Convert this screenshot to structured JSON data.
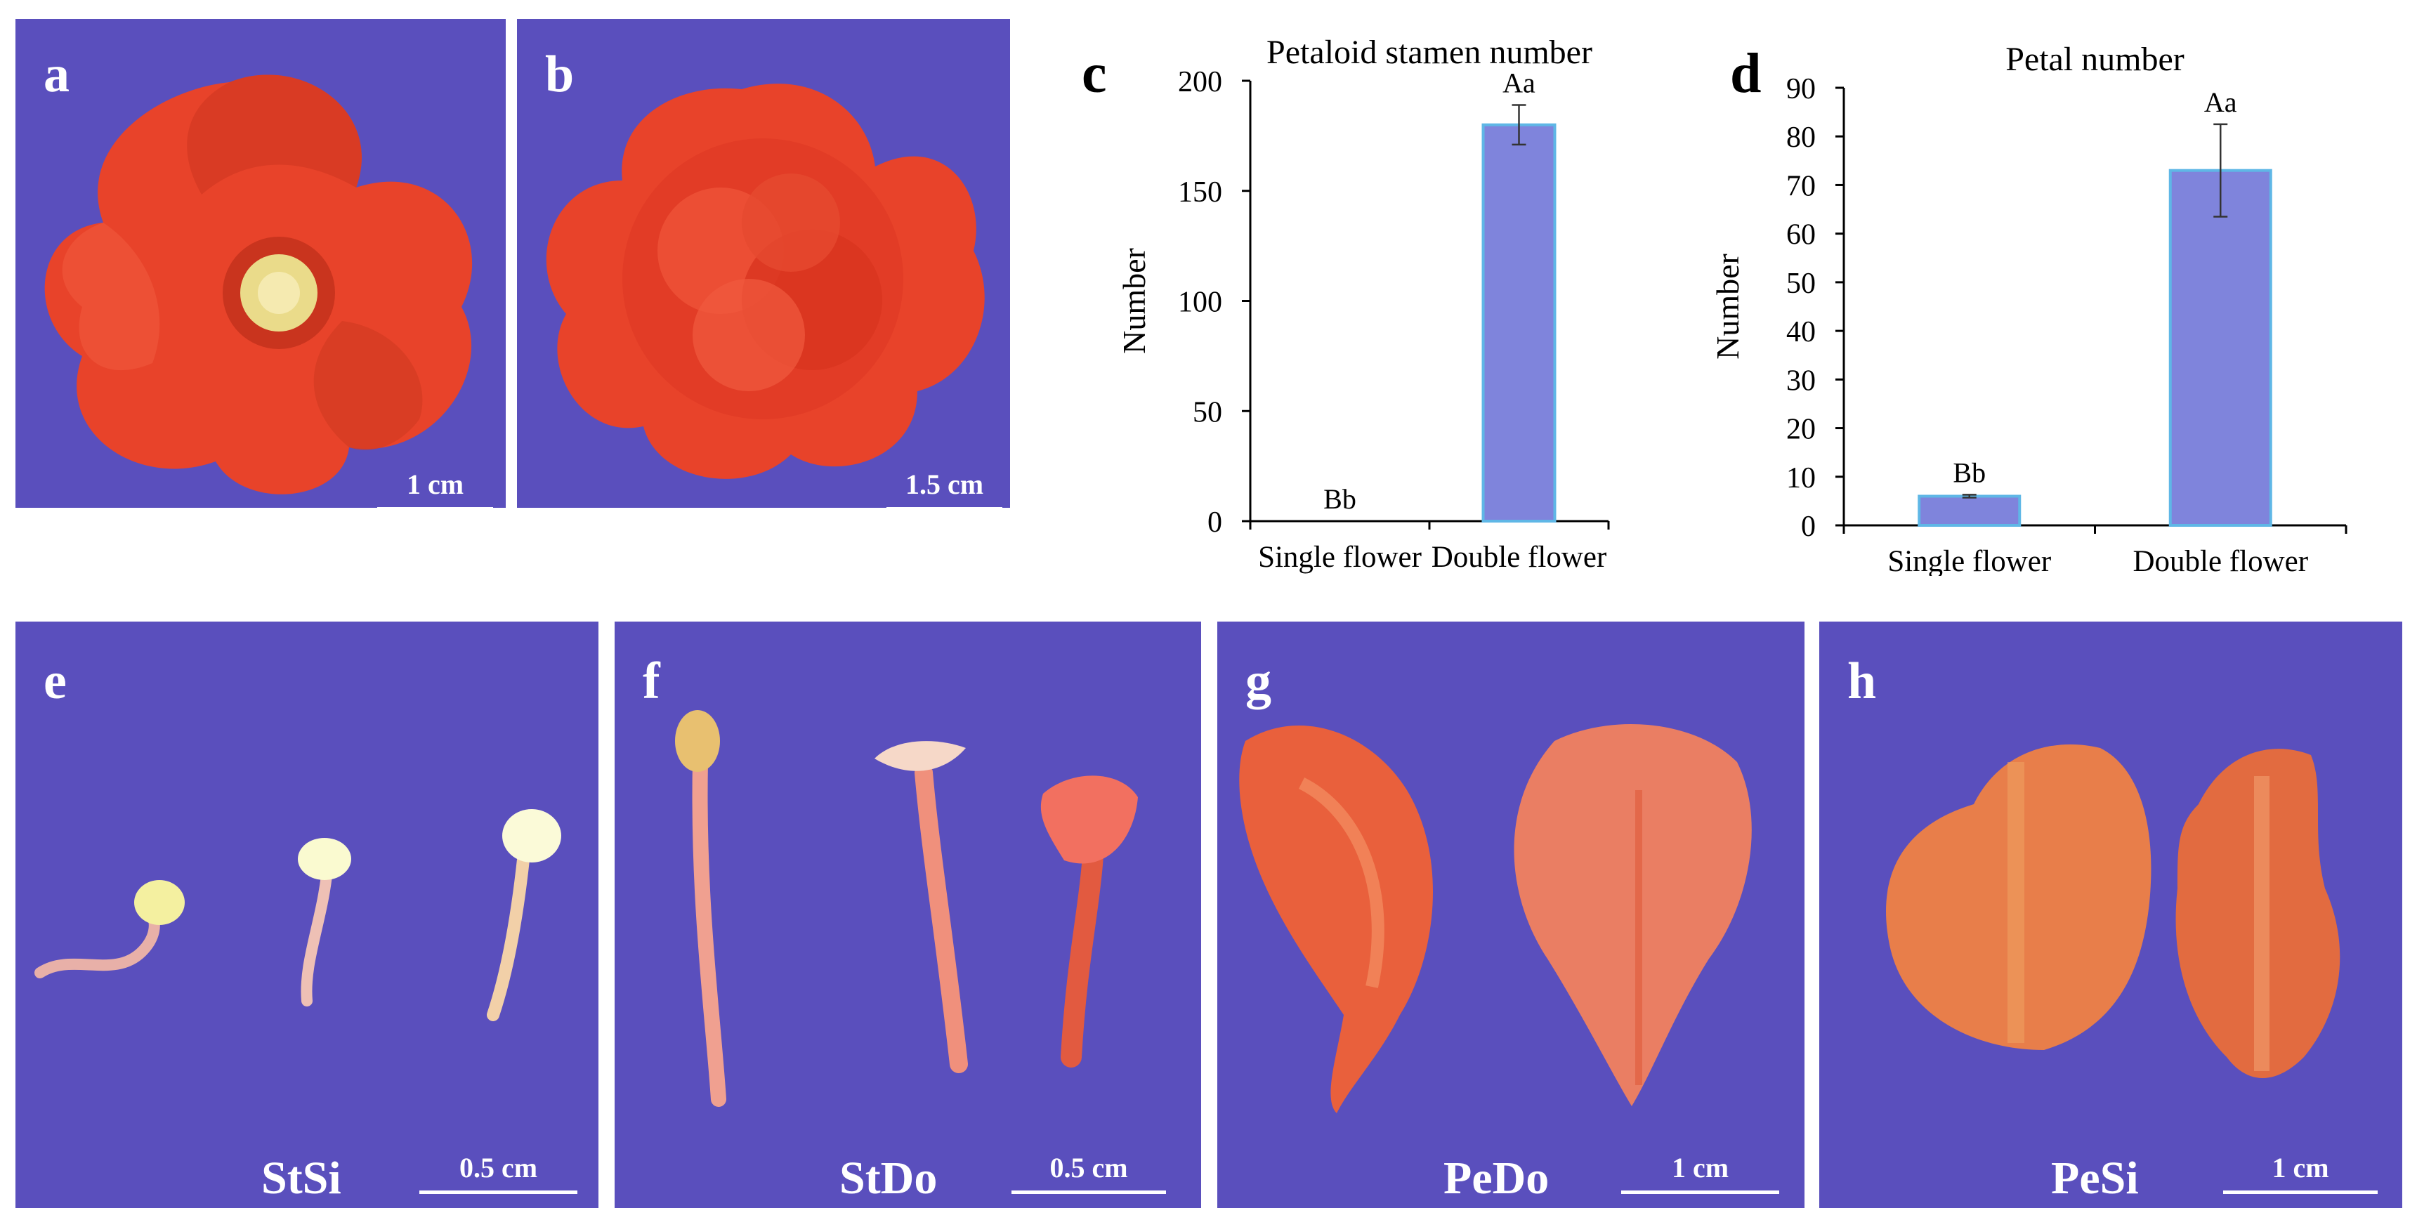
{
  "panels": {
    "a": {
      "label": "a",
      "scale": "1 cm"
    },
    "b": {
      "label": "b",
      "scale": "1.5 cm"
    },
    "e": {
      "label": "e",
      "caption": "StSi",
      "scale": "0.5 cm"
    },
    "f": {
      "label": "f",
      "caption": "StDo",
      "scale": "0.5 cm"
    },
    "g": {
      "label": "g",
      "caption": "PeDo",
      "scale": "1 cm"
    },
    "h": {
      "label": "h",
      "caption": "PeSi",
      "scale": "1 cm"
    }
  },
  "colors": {
    "background": "#5a4fbd",
    "petal": "#e8432a",
    "bar": "#7f84dc",
    "bar_edge": "#5fb7e6"
  },
  "chart_data": [
    {
      "label": "c",
      "type": "bar",
      "title": "Petaloid stamen number",
      "xlabel": "",
      "ylabel": "Number",
      "categories": [
        "Single flower",
        "Double flower"
      ],
      "values": [
        0,
        180
      ],
      "errors": [
        0,
        9
      ],
      "annotations": [
        "Bb",
        "Aa"
      ],
      "ylim": [
        0,
        200
      ],
      "yticks": [
        0,
        50,
        100,
        150,
        200
      ]
    },
    {
      "label": "d",
      "type": "bar",
      "title": "Petal number",
      "xlabel": "",
      "ylabel": "Number",
      "categories": [
        "Single flower",
        "Double flower"
      ],
      "values": [
        6,
        73
      ],
      "errors": [
        0.3,
        9.5
      ],
      "annotations": [
        "Bb",
        "Aa"
      ],
      "ylim": [
        0,
        90
      ],
      "yticks": [
        0,
        10,
        20,
        30,
        40,
        50,
        60,
        70,
        80,
        90
      ]
    }
  ]
}
